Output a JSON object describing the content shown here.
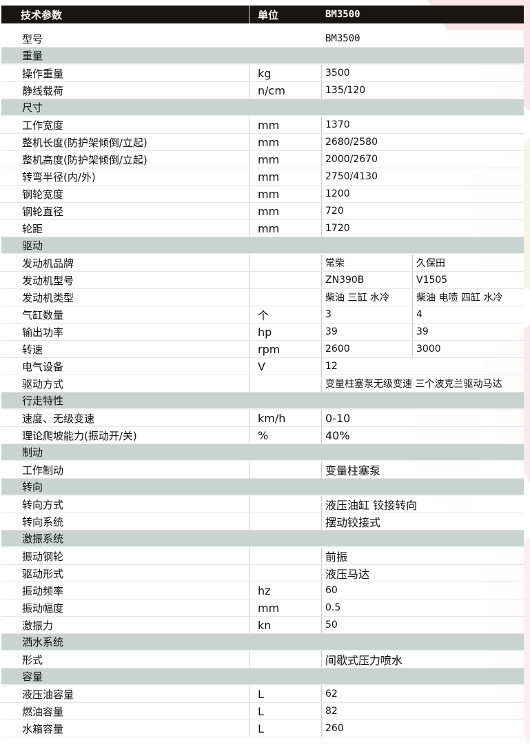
{
  "header": {
    "param": "技术参数",
    "unit": "单位",
    "model": "BM3500"
  },
  "rows": [
    {
      "type": "model",
      "label": "型号",
      "values": [
        "BM3500"
      ]
    },
    {
      "type": "section",
      "label": "重量"
    },
    {
      "type": "data",
      "label": "操作重量",
      "unit": "kg",
      "values": [
        "3500"
      ]
    },
    {
      "type": "data",
      "label": "静线载荷",
      "unit": "n/cm",
      "values": [
        "135/120"
      ]
    },
    {
      "type": "section",
      "label": "尺寸"
    },
    {
      "type": "data",
      "label": "工作宽度",
      "unit": "mm",
      "values": [
        "1370"
      ]
    },
    {
      "type": "data",
      "label": "整机长度(防护架倾倒/立起)",
      "unit": "mm",
      "values": [
        "2680/2580"
      ]
    },
    {
      "type": "data",
      "label": "整机高度(防护架倾倒/立起)",
      "unit": "mm",
      "values": [
        "2000/2670"
      ]
    },
    {
      "type": "data",
      "label": "转弯半径(内/外)",
      "unit": "mm",
      "values": [
        "2750/4130"
      ]
    },
    {
      "type": "data",
      "label": "钢轮宽度",
      "unit": "mm",
      "values": [
        "1200"
      ]
    },
    {
      "type": "data",
      "label": "钢轮直径",
      "unit": "mm",
      "values": [
        "720"
      ]
    },
    {
      "type": "data",
      "label": "轮距",
      "unit": "mm",
      "values": [
        "1720"
      ]
    },
    {
      "type": "section",
      "label": "驱动"
    },
    {
      "type": "data",
      "label": "发动机品牌",
      "unit": "",
      "values": [
        "常柴",
        "久保田"
      ]
    },
    {
      "type": "data",
      "label": "发动机型号",
      "unit": "",
      "values": [
        "ZN390B",
        "V1505"
      ]
    },
    {
      "type": "data",
      "label": "发动机类型",
      "unit": "",
      "values": [
        "柴油 三缸 水冷",
        "柴油 电喷 四缸 水冷"
      ]
    },
    {
      "type": "data",
      "label": "气缸数量",
      "unit": "个",
      "values": [
        "3",
        "4"
      ]
    },
    {
      "type": "data",
      "label": "输出功率",
      "unit": "hp",
      "values": [
        "39",
        "39"
      ]
    },
    {
      "type": "data",
      "label": "转速",
      "unit": "rpm",
      "values": [
        "2600",
        "3000"
      ]
    },
    {
      "type": "data",
      "label": "电气设备",
      "unit": "V",
      "values": [
        "12"
      ]
    },
    {
      "type": "data",
      "label": "驱动方式",
      "unit": "",
      "values": [
        "变量柱塞泵无级变速 三个波克兰驱动马达"
      ]
    },
    {
      "type": "section",
      "label": "行走特性"
    },
    {
      "type": "data",
      "label": "速度、无级变速",
      "unit": "km/h",
      "values": [
        "0-10"
      ],
      "big": true
    },
    {
      "type": "data",
      "label": "理论爬坡能力(振动开/关)",
      "unit": "%",
      "values": [
        "40%"
      ],
      "big": true
    },
    {
      "type": "section",
      "label": "制动"
    },
    {
      "type": "data",
      "label": "工作制动",
      "unit": "",
      "values": [
        "变量柱塞泵"
      ],
      "big": true
    },
    {
      "type": "section",
      "label": "转向"
    },
    {
      "type": "data",
      "label": "转向方式",
      "unit": "",
      "values": [
        "液压油缸 铰接转向"
      ],
      "big": true
    },
    {
      "type": "data",
      "label": "转向系统",
      "unit": "",
      "values": [
        "摆动铰接式"
      ],
      "big": true
    },
    {
      "type": "section",
      "label": "激振系统"
    },
    {
      "type": "data",
      "label": "振动钢轮",
      "unit": "",
      "values": [
        "前振"
      ],
      "big": true
    },
    {
      "type": "data",
      "label": "驱动形式",
      "unit": "",
      "values": [
        "液压马达"
      ],
      "big": true
    },
    {
      "type": "data",
      "label": "振动频率",
      "unit": "hz",
      "values": [
        "60"
      ]
    },
    {
      "type": "data",
      "label": "振动幅度",
      "unit": "mm",
      "values": [
        "0.5"
      ]
    },
    {
      "type": "data",
      "label": "激振力",
      "unit": "kn",
      "values": [
        "50"
      ]
    },
    {
      "type": "section",
      "label": "洒水系统"
    },
    {
      "type": "data",
      "label": "形式",
      "unit": "",
      "values": [
        "间歇式压力喷水"
      ],
      "big": true
    },
    {
      "type": "section",
      "label": "容量"
    },
    {
      "type": "data",
      "label": "液压油容量",
      "unit": "L",
      "values": [
        "62"
      ]
    },
    {
      "type": "data",
      "label": "燃油容量",
      "unit": "L",
      "values": [
        "82"
      ]
    },
    {
      "type": "data",
      "label": "水箱容量",
      "unit": "L",
      "values": [
        "260"
      ]
    }
  ]
}
